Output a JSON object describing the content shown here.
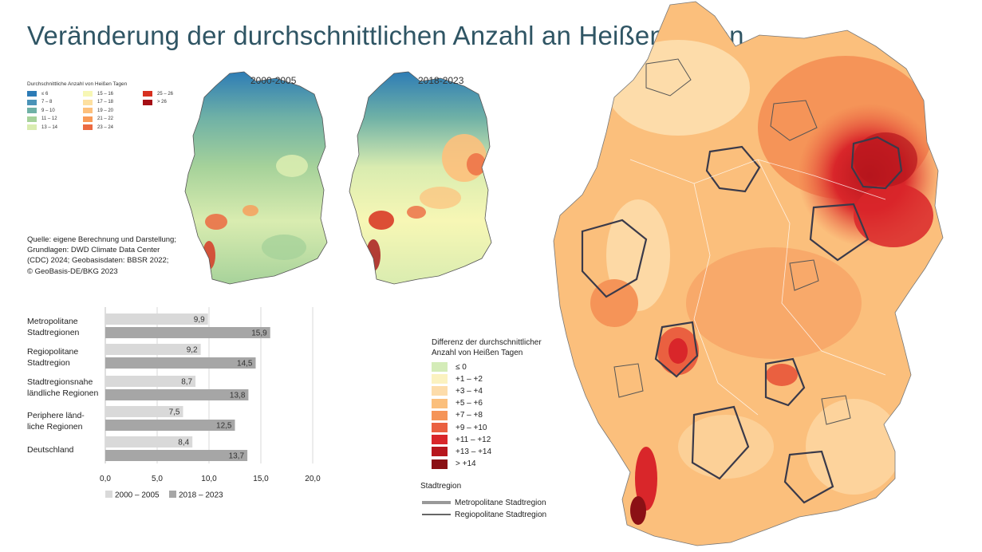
{
  "title": "Veränderung der durchschnittlichen Anzahl an Heißen Tagen",
  "small_maps": [
    {
      "label": "2000-2005"
    },
    {
      "label": "2018-2023"
    }
  ],
  "small_legend": {
    "title": "Durchschnittliche Anzahl von Heißen Tagen",
    "items": [
      {
        "label": "≤ 6",
        "color": "#2c7bb6"
      },
      {
        "label": "7 – 8",
        "color": "#4a93b8"
      },
      {
        "label": "9 – 10",
        "color": "#6fb1a6"
      },
      {
        "label": "11 – 12",
        "color": "#a6d29a"
      },
      {
        "label": "13 – 14",
        "color": "#d9ecb0"
      },
      {
        "label": "15 – 16",
        "color": "#f7f7b5"
      },
      {
        "label": "17 – 18",
        "color": "#fde0a0"
      },
      {
        "label": "19 – 20",
        "color": "#fdc07c"
      },
      {
        "label": "21 – 22",
        "color": "#f99b57"
      },
      {
        "label": "23 – 24",
        "color": "#ec6a41"
      },
      {
        "label": "25 – 26",
        "color": "#d7301f"
      },
      {
        "label": "> 26",
        "color": "#a50f15"
      }
    ]
  },
  "source_lines": [
    "Quelle: eigene Berechnung und Darstellung;",
    "Grundlagen: DWD Climate Data Center",
    "(CDC) 2024; Geobasisdaten: BBSR 2022;",
    "© GeoBasis-DE/BKG 2023"
  ],
  "chart_data": {
    "type": "bar",
    "orientation": "horizontal",
    "categories": [
      [
        "Metropolitane",
        "Stadtregionen"
      ],
      [
        "Regiopolitane",
        "Stadtregion"
      ],
      [
        "Stadtregionsnahe",
        "ländliche Regionen"
      ],
      [
        "Periphere länd-",
        "liche Regionen"
      ],
      [
        "Deutschland"
      ]
    ],
    "series": [
      {
        "name": "2000 – 2005",
        "color": "#d9d9d9",
        "values": [
          9.9,
          9.2,
          8.7,
          7.5,
          8.4
        ],
        "labels": [
          "9,9",
          "9,2",
          "8,7",
          "7,5",
          "8,4"
        ]
      },
      {
        "name": "2018 – 2023",
        "color": "#a6a6a6",
        "values": [
          15.9,
          14.5,
          13.8,
          12.5,
          13.7
        ],
        "labels": [
          "15,9",
          "14,5",
          "13,8",
          "12,5",
          "13,7"
        ]
      }
    ],
    "xlim": [
      0,
      20
    ],
    "ticks": [
      0,
      5,
      10,
      15,
      20
    ],
    "tick_labels": [
      "0,0",
      "5,0",
      "10,0",
      "15,0",
      "20,0"
    ],
    "legend_position": "bottom"
  },
  "diff_legend": {
    "title_lines": [
      "Differenz der durchschnittlicher",
      "Anzahl von Heißen Tagen"
    ],
    "items": [
      {
        "label": "≤ 0",
        "color": "#d4ecb8"
      },
      {
        "label": "+1 – +2",
        "color": "#fbf2c0"
      },
      {
        "label": "+3 – +4",
        "color": "#fddcaa"
      },
      {
        "label": "+5 – +6",
        "color": "#fbbf7c"
      },
      {
        "label": "+7 – +8",
        "color": "#f59458"
      },
      {
        "label": "+9 – +10",
        "color": "#ea6040"
      },
      {
        "label": "+11 – +12",
        "color": "#d9262a"
      },
      {
        "label": "+13  – +14",
        "color": "#b7161d"
      },
      {
        "label": "> +14",
        "color": "#8b1015"
      }
    ]
  },
  "stadtregion": {
    "title": "Stadtregion",
    "items": [
      {
        "label": "Metropolitane Stadtregion"
      },
      {
        "label": "Regiopolitane Stadtregion"
      }
    ]
  }
}
